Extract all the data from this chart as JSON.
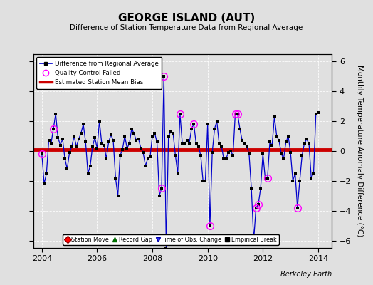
{
  "title": "GEORGE ISLAND (AUT)",
  "subtitle": "Difference of Station Temperature Data from Regional Average",
  "ylabel": "Monthly Temperature Anomaly Difference (°C)",
  "xlim": [
    2003.7,
    2014.5
  ],
  "ylim": [
    -6.5,
    6.5
  ],
  "yticks": [
    -6,
    -4,
    -2,
    0,
    2,
    4,
    6
  ],
  "xticks": [
    2004,
    2006,
    2008,
    2010,
    2012,
    2014
  ],
  "bias_start": 2003.7,
  "bias_end": 2014.5,
  "bias_value": 0.08,
  "bias_color": "#cc0000",
  "line_color": "#0000cc",
  "background_color": "#e0e0e0",
  "watermark": "Berkeley Earth",
  "time_series": [
    [
      2004.0,
      -0.2
    ],
    [
      2004.083,
      -2.2
    ],
    [
      2004.167,
      -1.5
    ],
    [
      2004.25,
      0.7
    ],
    [
      2004.333,
      0.5
    ],
    [
      2004.417,
      1.5
    ],
    [
      2004.5,
      2.5
    ],
    [
      2004.583,
      0.9
    ],
    [
      2004.667,
      0.4
    ],
    [
      2004.75,
      0.8
    ],
    [
      2004.833,
      -0.5
    ],
    [
      2004.917,
      -1.2
    ],
    [
      2005.0,
      -0.1
    ],
    [
      2005.083,
      0.3
    ],
    [
      2005.167,
      1.0
    ],
    [
      2005.25,
      0.3
    ],
    [
      2005.333,
      0.8
    ],
    [
      2005.417,
      1.2
    ],
    [
      2005.5,
      1.8
    ],
    [
      2005.583,
      0.6
    ],
    [
      2005.667,
      -1.5
    ],
    [
      2005.75,
      -1.0
    ],
    [
      2005.833,
      0.3
    ],
    [
      2005.917,
      0.9
    ],
    [
      2006.0,
      0.2
    ],
    [
      2006.083,
      2.0
    ],
    [
      2006.167,
      0.5
    ],
    [
      2006.25,
      0.4
    ],
    [
      2006.333,
      -0.5
    ],
    [
      2006.417,
      0.6
    ],
    [
      2006.5,
      1.1
    ],
    [
      2006.583,
      0.7
    ],
    [
      2006.667,
      -1.8
    ],
    [
      2006.75,
      -3.0
    ],
    [
      2006.833,
      -0.3
    ],
    [
      2006.917,
      0.1
    ],
    [
      2007.0,
      1.0
    ],
    [
      2007.083,
      0.2
    ],
    [
      2007.167,
      0.5
    ],
    [
      2007.25,
      1.5
    ],
    [
      2007.333,
      1.2
    ],
    [
      2007.417,
      0.7
    ],
    [
      2007.5,
      0.8
    ],
    [
      2007.583,
      0.2
    ],
    [
      2007.667,
      -0.1
    ],
    [
      2007.75,
      -1.0
    ],
    [
      2007.833,
      -0.5
    ],
    [
      2007.917,
      -0.4
    ],
    [
      2008.0,
      1.0
    ],
    [
      2008.083,
      1.2
    ],
    [
      2008.167,
      0.6
    ],
    [
      2008.25,
      -3.0
    ],
    [
      2008.333,
      -2.5
    ],
    [
      2008.417,
      5.0
    ],
    [
      2008.5,
      -6.5
    ],
    [
      2008.583,
      1.0
    ],
    [
      2008.667,
      1.3
    ],
    [
      2008.75,
      1.2
    ],
    [
      2008.833,
      -0.3
    ],
    [
      2008.917,
      -1.5
    ],
    [
      2009.0,
      2.5
    ],
    [
      2009.083,
      0.5
    ],
    [
      2009.167,
      0.5
    ],
    [
      2009.25,
      0.7
    ],
    [
      2009.333,
      0.5
    ],
    [
      2009.417,
      1.5
    ],
    [
      2009.5,
      1.8
    ],
    [
      2009.583,
      0.5
    ],
    [
      2009.667,
      0.3
    ],
    [
      2009.75,
      -0.3
    ],
    [
      2009.833,
      -2.0
    ],
    [
      2009.917,
      -2.0
    ],
    [
      2010.0,
      1.8
    ],
    [
      2010.083,
      -5.0
    ],
    [
      2010.167,
      -0.1
    ],
    [
      2010.25,
      1.5
    ],
    [
      2010.333,
      2.0
    ],
    [
      2010.417,
      0.5
    ],
    [
      2010.5,
      0.3
    ],
    [
      2010.583,
      -0.5
    ],
    [
      2010.667,
      -0.5
    ],
    [
      2010.75,
      -0.1
    ],
    [
      2010.833,
      0.0
    ],
    [
      2010.917,
      -0.3
    ],
    [
      2011.0,
      2.5
    ],
    [
      2011.083,
      2.5
    ],
    [
      2011.167,
      1.5
    ],
    [
      2011.25,
      0.7
    ],
    [
      2011.333,
      0.5
    ],
    [
      2011.417,
      0.3
    ],
    [
      2011.5,
      -0.2
    ],
    [
      2011.583,
      -2.5
    ],
    [
      2011.667,
      -6.0
    ],
    [
      2011.75,
      -3.8
    ],
    [
      2011.833,
      -3.6
    ],
    [
      2011.917,
      -2.5
    ],
    [
      2012.0,
      -0.2
    ],
    [
      2012.083,
      -1.8
    ],
    [
      2012.167,
      -1.8
    ],
    [
      2012.25,
      0.6
    ],
    [
      2012.333,
      0.4
    ],
    [
      2012.417,
      2.3
    ],
    [
      2012.5,
      1.0
    ],
    [
      2012.583,
      0.7
    ],
    [
      2012.667,
      -0.2
    ],
    [
      2012.75,
      -0.5
    ],
    [
      2012.833,
      0.6
    ],
    [
      2012.917,
      1.0
    ],
    [
      2013.0,
      -0.1
    ],
    [
      2013.083,
      -2.0
    ],
    [
      2013.167,
      -1.5
    ],
    [
      2013.25,
      -3.8
    ],
    [
      2013.333,
      -2.0
    ],
    [
      2013.417,
      -0.3
    ],
    [
      2013.5,
      0.5
    ],
    [
      2013.583,
      0.8
    ],
    [
      2013.667,
      0.5
    ],
    [
      2013.75,
      -1.8
    ],
    [
      2013.833,
      -1.5
    ],
    [
      2013.917,
      2.5
    ],
    [
      2014.0,
      2.6
    ]
  ],
  "qc_failed": [
    [
      2004.0,
      -0.2
    ],
    [
      2004.417,
      1.5
    ],
    [
      2008.417,
      5.0
    ],
    [
      2008.333,
      -2.5
    ],
    [
      2009.0,
      2.5
    ],
    [
      2009.5,
      1.8
    ],
    [
      2010.083,
      -5.0
    ],
    [
      2011.0,
      2.5
    ],
    [
      2011.083,
      2.5
    ],
    [
      2011.667,
      -6.0
    ],
    [
      2011.75,
      -3.8
    ],
    [
      2011.833,
      -3.6
    ],
    [
      2012.167,
      -1.8
    ],
    [
      2013.25,
      -3.8
    ]
  ]
}
